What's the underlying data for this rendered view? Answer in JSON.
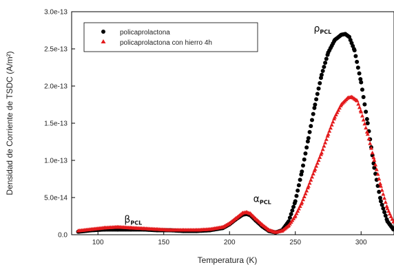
{
  "chart_data": {
    "type": "scatter",
    "title": "",
    "xlabel": "Temperatura (K)",
    "ylabel": "Densidad de Corriente de TSDC (A/m²)",
    "xlim": [
      80,
      325
    ],
    "ylim": [
      0,
      3e-13
    ],
    "xticks": [
      100,
      150,
      200,
      250,
      300
    ],
    "yticks": [
      0,
      5e-14,
      1e-13,
      1.5e-13,
      2e-13,
      2.5e-13,
      3e-13
    ],
    "ytick_labels": [
      "0.0",
      "5.0e-14",
      "1.0e-13",
      "1.5e-13",
      "2.0e-13",
      "2.5e-13",
      "3.0e-13"
    ],
    "legend_position": "top-left",
    "series": [
      {
        "name": "policaprolactona",
        "color": "#000000",
        "marker": "circle",
        "points": [
          [
            85,
            4e-15
          ],
          [
            95,
            6e-15
          ],
          [
            105,
            7e-15
          ],
          [
            115,
            7e-15
          ],
          [
            125,
            7e-15
          ],
          [
            135,
            7e-15
          ],
          [
            145,
            6e-15
          ],
          [
            155,
            6e-15
          ],
          [
            165,
            5e-15
          ],
          [
            175,
            5e-15
          ],
          [
            185,
            6e-15
          ],
          [
            195,
            9e-15
          ],
          [
            200,
            1.4e-14
          ],
          [
            205,
            2.1e-14
          ],
          [
            210,
            2.7e-14
          ],
          [
            213,
            2.8e-14
          ],
          [
            216,
            2.6e-14
          ],
          [
            220,
            1.9e-14
          ],
          [
            225,
            1.1e-14
          ],
          [
            230,
            5e-15
          ],
          [
            235,
            3e-15
          ],
          [
            240,
            6e-15
          ],
          [
            245,
            1.8e-14
          ],
          [
            250,
            4.5e-14
          ],
          [
            255,
            8.5e-14
          ],
          [
            260,
            1.3e-13
          ],
          [
            265,
            1.75e-13
          ],
          [
            270,
            2.15e-13
          ],
          [
            275,
            2.45e-13
          ],
          [
            280,
            2.62e-13
          ],
          [
            285,
            2.69e-13
          ],
          [
            288,
            2.7e-13
          ],
          [
            291,
            2.66e-13
          ],
          [
            295,
            2.48e-13
          ],
          [
            300,
            2.05e-13
          ],
          [
            305,
            1.5e-13
          ],
          [
            310,
            9e-14
          ],
          [
            315,
            4.5e-14
          ],
          [
            320,
            1.8e-14
          ],
          [
            325,
            6e-15
          ]
        ]
      },
      {
        "name": "policaprolactona con hierro 4h",
        "color": "#e31a1c",
        "marker": "triangle",
        "points": [
          [
            85,
            5e-15
          ],
          [
            95,
            7e-15
          ],
          [
            105,
            9e-15
          ],
          [
            115,
            1e-14
          ],
          [
            125,
            9e-15
          ],
          [
            135,
            8e-15
          ],
          [
            145,
            7e-15
          ],
          [
            155,
            6e-15
          ],
          [
            165,
            6e-15
          ],
          [
            175,
            6e-15
          ],
          [
            185,
            7e-15
          ],
          [
            195,
            1e-14
          ],
          [
            200,
            1.5e-14
          ],
          [
            205,
            2.2e-14
          ],
          [
            210,
            2.9e-14
          ],
          [
            213,
            3e-14
          ],
          [
            216,
            2.8e-14
          ],
          [
            220,
            2.1e-14
          ],
          [
            225,
            1.3e-14
          ],
          [
            230,
            6e-15
          ],
          [
            235,
            3e-15
          ],
          [
            240,
            5e-15
          ],
          [
            245,
            1.2e-14
          ],
          [
            250,
            2.5e-14
          ],
          [
            255,
            4.3e-14
          ],
          [
            260,
            6.5e-14
          ],
          [
            265,
            8.8e-14
          ],
          [
            270,
            1.1e-13
          ],
          [
            275,
            1.35e-13
          ],
          [
            280,
            1.58e-13
          ],
          [
            285,
            1.75e-13
          ],
          [
            290,
            1.84e-13
          ],
          [
            293,
            1.85e-13
          ],
          [
            297,
            1.8e-13
          ],
          [
            300,
            1.65e-13
          ],
          [
            305,
            1.35e-13
          ],
          [
            310,
            1e-13
          ],
          [
            315,
            6.5e-14
          ],
          [
            320,
            3.5e-14
          ],
          [
            325,
            1.5e-14
          ]
        ]
      }
    ],
    "annotations": [
      {
        "main": "β",
        "sub": "PCL",
        "x": 120,
        "y": 1.6e-14
      },
      {
        "main": "α",
        "sub": "PCL",
        "x": 218,
        "y": 4.4e-14
      },
      {
        "main": "ρ",
        "sub": "PCL",
        "x": 264,
        "y": 2.73e-13
      }
    ]
  }
}
